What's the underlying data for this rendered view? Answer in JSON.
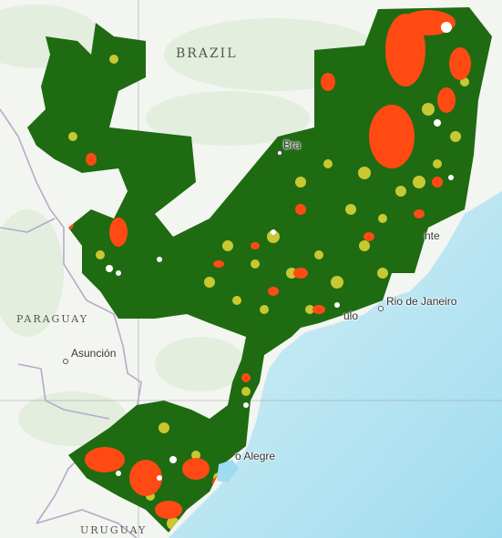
{
  "map": {
    "country_labels": {
      "brazil": "BRAZIL",
      "paraguay": "PARAGUAY",
      "uruguay": "URUGUAY"
    },
    "city_labels": {
      "brasilia": "Bra",
      "belo_horizonte": "nte",
      "rio": "Rio de Janeiro",
      "sao_paulo": "ulo",
      "asuncion": "Asunción",
      "porto_alegre": "o Alegre"
    },
    "legend_colors": {
      "forest": "#1e6b12",
      "moderate": "#c8c832",
      "high": "#ff4a14",
      "ocean": "#bfe8f3",
      "land": "#f3f5f1"
    }
  }
}
